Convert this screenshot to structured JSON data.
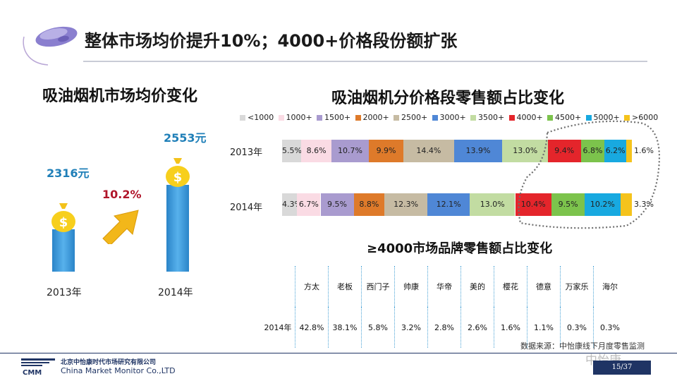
{
  "title": "整体市场均价提升10%；4000+价格段份额扩张",
  "avg_price": {
    "heading": "吸油烟机市场均价变化",
    "growth": "10.2%",
    "items": [
      {
        "year": "2013年",
        "price_label": "2316元",
        "value": 2316
      },
      {
        "year": "2014年",
        "price_label": "2553元",
        "value": 2553
      }
    ]
  },
  "chart_data": {
    "type": "bar",
    "title": "吸油烟机分价格段零售额占比变化",
    "orientation": "horizontal-stacked-100",
    "categories": [
      "2013年",
      "2014年"
    ],
    "series": [
      {
        "name": "<1000",
        "color": "#d9d9d9",
        "values": [
          5.5,
          4.3
        ]
      },
      {
        "name": "1000+",
        "color": "#fadbe4",
        "values": [
          8.6,
          6.7
        ]
      },
      {
        "name": "1500+",
        "color": "#a99bcf",
        "values": [
          10.7,
          9.5
        ]
      },
      {
        "name": "2000+",
        "color": "#de7a2a",
        "values": [
          9.9,
          8.8
        ]
      },
      {
        "name": "2500+",
        "color": "#c6bba3",
        "values": [
          14.4,
          12.3
        ]
      },
      {
        "name": "3000+",
        "color": "#4f87d6",
        "values": [
          13.9,
          12.1
        ]
      },
      {
        "name": "3500+",
        "color": "#c2dca2",
        "values": [
          13.0,
          13.0
        ]
      },
      {
        "name": "4000+",
        "color": "#e4252b",
        "values": [
          9.4,
          10.4
        ]
      },
      {
        "name": "4500+",
        "color": "#7cc34c",
        "values": [
          6.8,
          9.5
        ]
      },
      {
        "name": "5000+",
        "color": "#18a9e0",
        "values": [
          6.2,
          10.2
        ]
      },
      {
        "name": ">6000",
        "color": "#f5c31c",
        "values": [
          1.6,
          3.3
        ]
      }
    ],
    "labels": [
      [
        "5.5%",
        "8.6%",
        "10.7%",
        "9.9%",
        "14.4%",
        "13.9%",
        "13.0%",
        "9.4%",
        "6.8%",
        "6.2%",
        "1.6%"
      ],
      [
        "4.3%",
        "6.7%",
        "9.5%",
        "8.8%",
        "12.3%",
        "12.1%",
        "13.0%",
        "10.4%",
        "9.5%",
        "10.2%",
        "3.3%"
      ]
    ]
  },
  "brand_share": {
    "heading": "≥4000市场品牌零售额占比变化",
    "row_label": "2014年",
    "brands": [
      "方太",
      "老板",
      "西门子",
      "帅康",
      "华帝",
      "美的",
      "樱花",
      "德意",
      "万家乐",
      "海尔"
    ],
    "shares": [
      "42.8%",
      "38.1%",
      "5.8%",
      "3.2%",
      "2.8%",
      "2.6%",
      "1.6%",
      "1.1%",
      "0.3%",
      "0.3%"
    ]
  },
  "source": "数据来源：中怡康线下月度零售监测",
  "watermark_handle": "中怡康",
  "page_number": "15/37",
  "company": {
    "name_cn": "北京中怡康时代市场研究有限公司",
    "name_en": "China Market Monitor Co.,LTD",
    "logo_text": "CMM"
  }
}
